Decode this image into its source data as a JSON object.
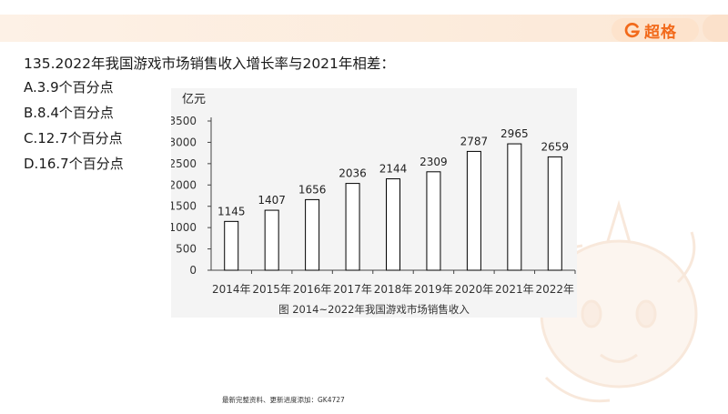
{
  "brand": {
    "logo_text": "超格",
    "accent_color": "#f26a1b"
  },
  "question": {
    "text": "135.2022年我国游戏市场销售收入增长率与2021年相差：",
    "options": [
      {
        "label": "A.3.9个百分点"
      },
      {
        "label": "B.8.4个百分点"
      },
      {
        "label": "C.12.7个百分点"
      },
      {
        "label": "D.16.7个百分点"
      }
    ]
  },
  "chart_data": {
    "type": "bar",
    "title": "图  2014~2022年我国游戏市场销售收入",
    "ylabel": "亿元",
    "categories": [
      "2014年",
      "2015年",
      "2016年",
      "2017年",
      "2018年",
      "2019年",
      "2020年",
      "2021年",
      "2022年"
    ],
    "values": [
      1145,
      1407,
      1656,
      2036,
      2144,
      2309,
      2787,
      2965,
      2659
    ],
    "ylim": [
      0,
      3500
    ],
    "yticks": [
      0,
      500,
      1000,
      1500,
      2000,
      2500,
      3000,
      3500
    ],
    "grid": false,
    "bar_fill": "#ffffff",
    "bar_stroke": "#000000"
  },
  "footer": {
    "text": "最新完整资料、更新进度添加：GK4727"
  }
}
